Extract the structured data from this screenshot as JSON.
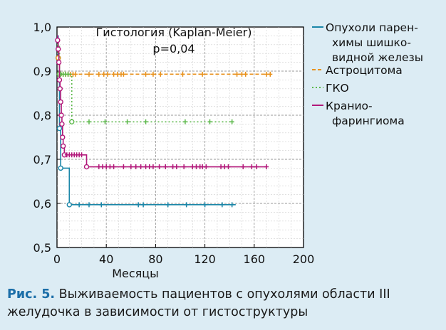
{
  "chart_data": {
    "type": "line",
    "title": "Гистология (Kaplan-Meier)",
    "subtitle": "p=0,04",
    "xlabel": "Месяцы",
    "ylabel": "",
    "xlim": [
      0,
      200
    ],
    "ylim": [
      0.5,
      1.0
    ],
    "x_ticks": [
      "0",
      "40",
      "80",
      "120",
      "160",
      "200"
    ],
    "y_ticks": [
      "0,5",
      "0,6",
      "0,7",
      "0,8",
      "0,9",
      "1,0"
    ],
    "x_tick_values": [
      0,
      40,
      80,
      120,
      160,
      200
    ],
    "y_tick_values": [
      0.5,
      0.6,
      0.7,
      0.8,
      0.9,
      1.0
    ],
    "grid": true,
    "legend_position": "right",
    "series": [
      {
        "name": "Опухоли паренхимы шишковидной железы",
        "legend_lines": [
          "Опухоли парен-",
          "химы шишко-",
          "видной железы"
        ],
        "color": "#1a86a8",
        "dash": "none",
        "steps": [
          [
            0,
            0.98
          ],
          [
            1,
            0.93
          ],
          [
            2,
            0.77
          ],
          [
            3,
            0.68
          ],
          [
            10,
            0.597
          ],
          [
            145,
            0.597
          ]
        ],
        "events": [
          [
            1,
            0.93
          ],
          [
            2,
            0.77
          ],
          [
            3,
            0.68
          ],
          [
            10,
            0.597
          ]
        ],
        "censored": [
          18,
          26,
          36,
          66,
          70,
          90,
          105,
          120,
          134,
          142
        ]
      },
      {
        "name": "Астроцитома",
        "legend_lines": [
          "Астроцитома"
        ],
        "color": "#e8911c",
        "dash": "5,3",
        "steps": [
          [
            0,
            0.96
          ],
          [
            1,
            0.93
          ],
          [
            2,
            0.893
          ],
          [
            174,
            0.893
          ]
        ],
        "events": [
          [
            1,
            0.93
          ],
          [
            2,
            0.893
          ]
        ],
        "censored": [
          5,
          7,
          9,
          11,
          13,
          15,
          26,
          34,
          38,
          41,
          46,
          49,
          52,
          54,
          72,
          78,
          84,
          102,
          118,
          146,
          150,
          153,
          170,
          173
        ]
      },
      {
        "name": "ГКО",
        "legend_lines": [
          "ГКО"
        ],
        "color": "#5bb84a",
        "dash": "2,3",
        "steps": [
          [
            0,
            0.96
          ],
          [
            2,
            0.893
          ],
          [
            12,
            0.785
          ],
          [
            145,
            0.785
          ]
        ],
        "events": [
          [
            2,
            0.893
          ],
          [
            12,
            0.785
          ]
        ],
        "censored": [
          3,
          5,
          7,
          9,
          26,
          39,
          57,
          72,
          104,
          124,
          142
        ]
      },
      {
        "name": "Краниофарингиома",
        "legend_lines": [
          "Кранио-",
          "фарингиома"
        ],
        "color": "#b2187a",
        "dash": "none",
        "steps": [
          [
            0,
            0.98
          ],
          [
            0.5,
            0.97
          ],
          [
            1,
            0.95
          ],
          [
            1.5,
            0.92
          ],
          [
            2,
            0.88
          ],
          [
            2.5,
            0.86
          ],
          [
            3,
            0.83
          ],
          [
            3.5,
            0.8
          ],
          [
            4,
            0.78
          ],
          [
            4.5,
            0.75
          ],
          [
            5,
            0.73
          ],
          [
            6,
            0.71
          ],
          [
            24,
            0.683
          ],
          [
            170,
            0.683
          ]
        ],
        "events": [
          [
            0.5,
            0.97
          ],
          [
            1,
            0.95
          ],
          [
            1.5,
            0.92
          ],
          [
            2,
            0.88
          ],
          [
            2.5,
            0.86
          ],
          [
            3,
            0.83
          ],
          [
            3.5,
            0.8
          ],
          [
            4,
            0.78
          ],
          [
            4.5,
            0.75
          ],
          [
            5,
            0.73
          ],
          [
            6,
            0.71
          ],
          [
            24,
            0.683
          ]
        ],
        "censored": [
          8,
          10,
          12,
          14,
          16,
          18,
          20,
          34,
          37,
          40,
          43,
          46,
          54,
          60,
          64,
          68,
          72,
          75,
          78,
          83,
          88,
          94,
          97,
          103,
          110,
          113,
          116,
          118,
          121,
          133,
          136,
          139,
          151,
          158,
          162,
          170
        ]
      }
    ]
  },
  "caption": {
    "label": "Рис. 5.",
    "text": " Выживаемость пациентов с опухолями области III желудочка в зависимости от гистоструктуры"
  }
}
